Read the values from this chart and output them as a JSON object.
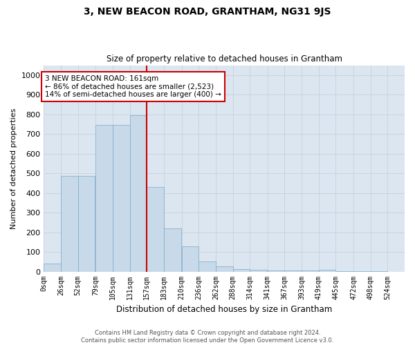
{
  "title": "3, NEW BEACON ROAD, GRANTHAM, NG31 9JS",
  "subtitle": "Size of property relative to detached houses in Grantham",
  "xlabel": "Distribution of detached houses by size in Grantham",
  "ylabel": "Number of detached properties",
  "bar_labels": [
    "0sqm",
    "26sqm",
    "52sqm",
    "79sqm",
    "105sqm",
    "131sqm",
    "157sqm",
    "183sqm",
    "210sqm",
    "236sqm",
    "262sqm",
    "288sqm",
    "314sqm",
    "341sqm",
    "367sqm",
    "393sqm",
    "419sqm",
    "445sqm",
    "472sqm",
    "498sqm",
    "524sqm"
  ],
  "bar_values": [
    42,
    487,
    487,
    748,
    748,
    795,
    432,
    220,
    130,
    50,
    28,
    13,
    8,
    5,
    5,
    5,
    8,
    3,
    3,
    3,
    0
  ],
  "bar_color": "#c8d9ea",
  "bar_edge_color": "#7aaac8",
  "property_line_x": 157,
  "annotation_title": "3 NEW BEACON ROAD: 161sqm",
  "annotation_line1": "← 86% of detached houses are smaller (2,523)",
  "annotation_line2": "14% of semi-detached houses are larger (400) →",
  "annotation_box_facecolor": "#ffffff",
  "annotation_box_edgecolor": "#cc0000",
  "vline_color": "#cc0000",
  "ylim": [
    0,
    1050
  ],
  "yticks": [
    0,
    100,
    200,
    300,
    400,
    500,
    600,
    700,
    800,
    900,
    1000
  ],
  "grid_color": "#c8d4e0",
  "background_color": "#dce6f0",
  "footer_line1": "Contains HM Land Registry data © Crown copyright and database right 2024.",
  "footer_line2": "Contains public sector information licensed under the Open Government Licence v3.0.",
  "bin_width": 26
}
